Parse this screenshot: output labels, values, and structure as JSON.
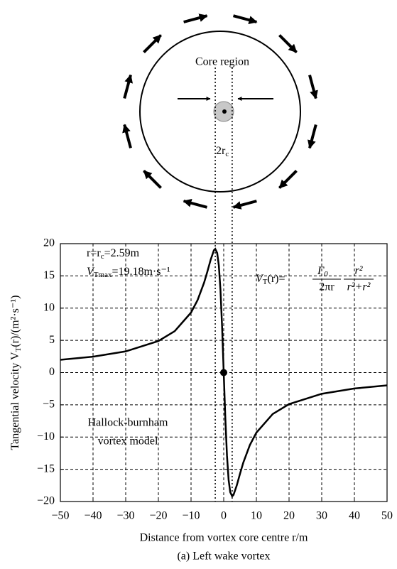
{
  "diagram": {
    "core_label": "Core region",
    "diameter_label": [
      "2r",
      "c"
    ]
  },
  "chart_data": {
    "type": "line",
    "x": [
      -50,
      -40,
      -30,
      -20,
      -15,
      -10,
      -8,
      -6,
      -5,
      -4,
      -3,
      -2.59,
      -2,
      -1.5,
      -1,
      -0.5,
      0,
      0.5,
      1,
      1.5,
      2,
      2.59,
      3,
      4,
      5,
      6,
      8,
      10,
      15,
      20,
      30,
      40,
      50
    ],
    "values": [
      1.98,
      2.47,
      3.29,
      4.89,
      6.43,
      9.31,
      11.24,
      13.96,
      15.67,
      17.5,
      18.97,
      19.18,
      18.55,
      16.64,
      12.89,
      7.14,
      0,
      -7.14,
      -12.89,
      -16.64,
      -18.55,
      -19.18,
      -18.97,
      -17.5,
      -15.67,
      -13.96,
      -11.24,
      -9.31,
      -6.43,
      -4.89,
      -3.29,
      -2.47,
      -1.98
    ],
    "color": "#000000",
    "xlim": [
      -50,
      50
    ],
    "xticks": [
      {
        "value": -50,
        "label": "−50"
      },
      {
        "value": -40,
        "label": "−40"
      },
      {
        "value": -30,
        "label": "−30"
      },
      {
        "value": -20,
        "label": "−20"
      },
      {
        "value": -10,
        "label": "−10"
      },
      0,
      10,
      20,
      30,
      40,
      50
    ],
    "ylim": [
      -20,
      20
    ],
    "yticks": [
      {
        "value": -20,
        "label": "−20"
      },
      {
        "value": -15,
        "label": "−15"
      },
      {
        "value": -10,
        "label": "−10"
      },
      {
        "value": -5,
        "label": "−5"
      },
      0,
      5,
      10,
      15,
      20
    ],
    "grid": true,
    "core_radius": 2.59,
    "xlabel": "Distance from vortex core centre r/m",
    "ylabel": [
      "Tangential velocity V",
      "T",
      "(r)/(m²·s⁻¹)"
    ],
    "peak_label": [
      "r=r",
      "c",
      "=2.59m"
    ],
    "vmax_label": [
      "V",
      "Tmax",
      "=19.18m·s⁻¹"
    ],
    "formula": [
      "V",
      "T",
      "(r)=",
      "Γ",
      "0",
      "2πr",
      "r²",
      "r²+r²"
    ],
    "model_label": [
      "Hallock-burnham",
      "vortex model"
    ],
    "caption": "(a) Left wake vortex"
  }
}
